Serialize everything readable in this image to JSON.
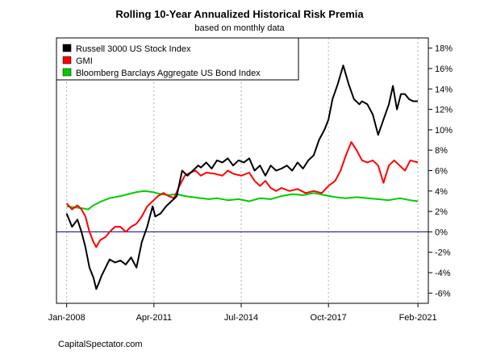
{
  "chart_data": {
    "type": "line",
    "title": "Rolling 10-Year Annualized Historical Risk Premia",
    "subtitle": "based on monthly data",
    "source": "CapitalSpectator.com",
    "xlabel": "",
    "ylabel": "",
    "x_ticks": [
      {
        "value": 2008.0,
        "label": "Jan-2008"
      },
      {
        "value": 2011.25,
        "label": "Apr-2011"
      },
      {
        "value": 2014.5,
        "label": "Jul-2014"
      },
      {
        "value": 2017.75,
        "label": "Oct-2017"
      },
      {
        "value": 2021.083,
        "label": "Feb-2021"
      }
    ],
    "xlim": [
      2008.0,
      2021.083
    ],
    "y_ticks": [
      {
        "value": -6,
        "label": "-6%"
      },
      {
        "value": -4,
        "label": "-4%"
      },
      {
        "value": -2,
        "label": "-2%"
      },
      {
        "value": 0,
        "label": "0%"
      },
      {
        "value": 2,
        "label": "2%"
      },
      {
        "value": 4,
        "label": "4%"
      },
      {
        "value": 6,
        "label": "6%"
      },
      {
        "value": 8,
        "label": "8%"
      },
      {
        "value": 10,
        "label": "10%"
      },
      {
        "value": 12,
        "label": "12%"
      },
      {
        "value": 14,
        "label": "14%"
      },
      {
        "value": 16,
        "label": "16%"
      },
      {
        "value": 18,
        "label": "18%"
      }
    ],
    "ylim": [
      -7,
      19
    ],
    "y_axis_side": "right",
    "grid": "vertical dotted",
    "zero_line": 0,
    "legend_position": "top-left",
    "colors": {
      "zero_line": "#000080",
      "grid": "#b0b0b0"
    },
    "series": [
      {
        "name": "Russell 3000 US Stock Index",
        "color": "#000000",
        "x": [
          2008.0,
          2008.2,
          2008.4,
          2008.55,
          2008.7,
          2008.85,
          2009.0,
          2009.1,
          2009.2,
          2009.3,
          2009.45,
          2009.6,
          2009.8,
          2010.0,
          2010.2,
          2010.4,
          2010.6,
          2010.8,
          2011.0,
          2011.1,
          2011.2,
          2011.3,
          2011.5,
          2011.7,
          2011.9,
          2012.1,
          2012.3,
          2012.5,
          2012.7,
          2012.9,
          2013.0,
          2013.2,
          2013.4,
          2013.6,
          2013.8,
          2014.0,
          2014.2,
          2014.4,
          2014.6,
          2014.8,
          2015.0,
          2015.2,
          2015.4,
          2015.6,
          2015.8,
          2016.0,
          2016.2,
          2016.4,
          2016.6,
          2016.8,
          2017.0,
          2017.2,
          2017.4,
          2017.6,
          2017.75,
          2017.9,
          2018.1,
          2018.3,
          2018.5,
          2018.7,
          2018.9,
          2019.0,
          2019.2,
          2019.4,
          2019.6,
          2019.8,
          2020.0,
          2020.15,
          2020.3,
          2020.45,
          2020.6,
          2020.75,
          2020.9,
          2021.083
        ],
        "values": [
          1.8,
          0.5,
          1.2,
          0.0,
          -1.5,
          -3.5,
          -4.5,
          -5.6,
          -5.0,
          -4.3,
          -3.5,
          -2.7,
          -3.0,
          -2.8,
          -3.2,
          -2.5,
          -3.5,
          -1.0,
          0.5,
          1.5,
          2.5,
          1.5,
          1.8,
          2.5,
          3.0,
          3.5,
          6.0,
          5.5,
          6.0,
          6.5,
          6.3,
          6.8,
          6.2,
          7.0,
          6.8,
          7.2,
          6.5,
          7.0,
          6.8,
          7.2,
          6.0,
          6.5,
          5.5,
          6.5,
          6.0,
          6.2,
          6.5,
          6.0,
          6.8,
          6.2,
          7.0,
          7.5,
          9.0,
          10.0,
          11.0,
          13.0,
          14.5,
          16.3,
          14.5,
          13.0,
          12.5,
          12.8,
          12.5,
          11.5,
          9.5,
          11.0,
          12.5,
          14.3,
          12.0,
          13.5,
          13.5,
          13.0,
          12.8,
          12.8
        ]
      },
      {
        "name": "GMI",
        "color": "#ff0000",
        "x": [
          2008.0,
          2008.2,
          2008.4,
          2008.55,
          2008.7,
          2008.85,
          2009.0,
          2009.1,
          2009.25,
          2009.45,
          2009.6,
          2009.8,
          2010.0,
          2010.2,
          2010.4,
          2010.6,
          2010.8,
          2011.0,
          2011.2,
          2011.4,
          2011.6,
          2011.8,
          2012.0,
          2012.2,
          2012.4,
          2012.6,
          2012.8,
          2013.0,
          2013.2,
          2013.5,
          2013.8,
          2014.0,
          2014.2,
          2014.5,
          2014.8,
          2015.0,
          2015.2,
          2015.4,
          2015.6,
          2015.8,
          2016.0,
          2016.3,
          2016.6,
          2016.9,
          2017.2,
          2017.5,
          2017.75,
          2018.0,
          2018.2,
          2018.4,
          2018.6,
          2018.8,
          2019.0,
          2019.2,
          2019.4,
          2019.6,
          2019.8,
          2020.0,
          2020.2,
          2020.4,
          2020.6,
          2020.8,
          2021.083
        ],
        "values": [
          2.8,
          2.2,
          2.6,
          2.2,
          1.5,
          0.0,
          -1.0,
          -1.5,
          -0.8,
          -0.5,
          0.0,
          0.5,
          0.5,
          0.0,
          0.5,
          0.8,
          1.5,
          2.5,
          3.0,
          3.5,
          3.8,
          3.5,
          3.3,
          4.5,
          5.5,
          5.8,
          6.0,
          5.5,
          5.8,
          5.7,
          5.5,
          6.0,
          5.7,
          5.5,
          5.8,
          5.0,
          4.5,
          5.0,
          4.3,
          4.0,
          4.3,
          4.0,
          4.2,
          3.8,
          4.0,
          3.8,
          4.5,
          5.0,
          6.0,
          7.5,
          8.8,
          8.0,
          7.0,
          6.8,
          7.0,
          6.5,
          4.8,
          6.5,
          7.0,
          6.5,
          6.0,
          7.0,
          6.8
        ]
      },
      {
        "name": "Bloomberg Barclays Aggregate US Bond Index",
        "color": "#00cc00",
        "x": [
          2008.0,
          2008.3,
          2008.6,
          2008.8,
          2009.0,
          2009.3,
          2009.6,
          2010.0,
          2010.3,
          2010.6,
          2010.9,
          2011.2,
          2011.5,
          2011.8,
          2012.1,
          2012.4,
          2012.7,
          2013.0,
          2013.3,
          2013.6,
          2014.0,
          2014.4,
          2014.8,
          2015.2,
          2015.6,
          2016.0,
          2016.4,
          2016.8,
          2017.2,
          2017.6,
          2018.0,
          2018.4,
          2018.8,
          2019.2,
          2019.6,
          2020.0,
          2020.4,
          2020.8,
          2021.083
        ],
        "values": [
          2.5,
          2.4,
          2.3,
          2.2,
          2.6,
          3.0,
          3.3,
          3.5,
          3.7,
          3.9,
          4.0,
          3.9,
          3.7,
          3.6,
          3.7,
          3.5,
          3.4,
          3.3,
          3.2,
          3.3,
          3.1,
          3.2,
          3.0,
          3.3,
          3.2,
          3.5,
          3.7,
          3.6,
          3.8,
          3.6,
          3.4,
          3.3,
          3.4,
          3.3,
          3.2,
          3.1,
          3.3,
          3.1,
          3.0
        ]
      }
    ]
  }
}
